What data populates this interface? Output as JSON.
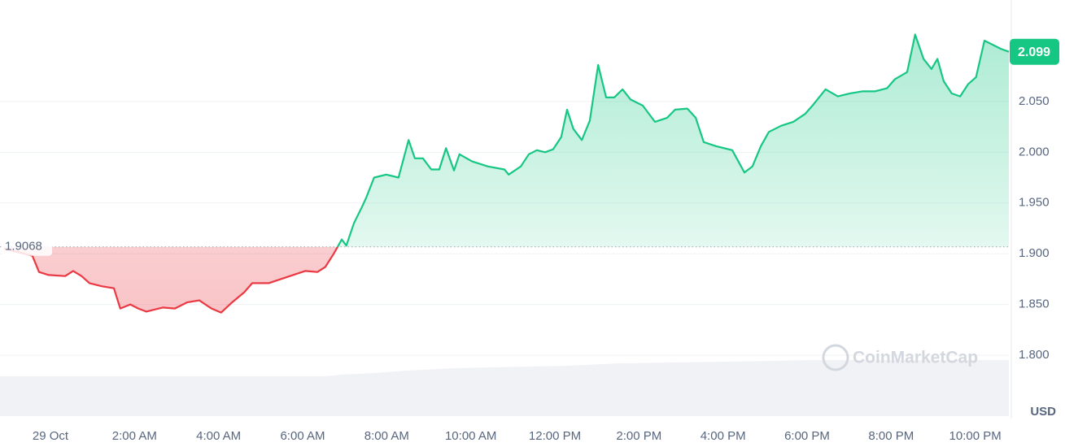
{
  "chart_data": {
    "type": "line",
    "x": [
      -1.1,
      -0.43,
      -0.27,
      -0.04,
      0.35,
      0.54,
      0.74,
      0.93,
      1.22,
      1.51,
      1.66,
      1.9,
      2.09,
      2.28,
      2.67,
      2.96,
      3.25,
      3.54,
      3.83,
      4.06,
      4.32,
      4.61,
      4.8,
      5.19,
      5.48,
      5.77,
      6.06,
      6.35,
      6.54,
      6.74,
      6.93,
      7.04,
      7.22,
      7.41,
      7.51,
      7.7,
      7.99,
      8.28,
      8.52,
      8.67,
      8.86,
      9.06,
      9.25,
      9.41,
      9.6,
      9.73,
      10.03,
      10.41,
      10.8,
      10.9,
      11.19,
      11.38,
      11.57,
      11.77,
      11.96,
      12.15,
      12.29,
      12.44,
      12.64,
      12.83,
      13.03,
      13.22,
      13.41,
      13.61,
      13.8,
      14.09,
      14.38,
      14.67,
      14.86,
      15.15,
      15.35,
      15.54,
      15.83,
      16.22,
      16.51,
      16.7,
      16.9,
      17.09,
      17.38,
      17.67,
      17.96,
      18.15,
      18.44,
      18.73,
      19.02,
      19.31,
      19.61,
      19.9,
      20.09,
      20.38,
      20.57,
      20.77,
      20.96,
      21.1,
      21.25,
      21.44,
      21.64,
      21.83,
      22.02,
      22.22,
      22.41,
      22.6,
      22.8
    ],
    "series": [
      {
        "name": "Price",
        "color": "#16c784",
        "below_color": "#ea3943",
        "values": [
          1.905,
          1.898,
          1.882,
          1.879,
          1.878,
          1.883,
          1.878,
          1.871,
          1.868,
          1.866,
          1.846,
          1.85,
          1.846,
          1.843,
          1.847,
          1.846,
          1.852,
          1.854,
          1.846,
          1.842,
          1.852,
          1.862,
          1.871,
          1.871,
          1.875,
          1.879,
          1.883,
          1.882,
          1.887,
          1.9,
          1.914,
          1.908,
          1.93,
          1.946,
          1.955,
          1.975,
          1.978,
          1.975,
          2.012,
          1.994,
          1.994,
          1.983,
          1.983,
          2.004,
          1.982,
          1.998,
          1.991,
          1.986,
          1.983,
          1.978,
          1.986,
          1.998,
          2.002,
          2.0,
          2.003,
          2.015,
          2.042,
          2.023,
          2.012,
          2.031,
          2.086,
          2.054,
          2.054,
          2.062,
          2.052,
          2.046,
          2.03,
          2.034,
          2.042,
          2.043,
          2.034,
          2.01,
          2.006,
          2.002,
          1.98,
          1.986,
          2.006,
          2.02,
          2.026,
          2.03,
          2.038,
          2.047,
          2.062,
          2.055,
          2.058,
          2.06,
          2.06,
          2.063,
          2.072,
          2.079,
          2.116,
          2.092,
          2.082,
          2.092,
          2.07,
          2.058,
          2.055,
          2.067,
          2.074,
          2.11,
          2.106,
          2.102,
          2.099
        ]
      }
    ],
    "baseline": 1.9068,
    "current_price": 2.099,
    "xlim": [
      -1.2,
      22.8
    ],
    "xticks": [
      {
        "value": 0,
        "label": "29 Oct"
      },
      {
        "value": 2,
        "label": "2:00 AM"
      },
      {
        "value": 4,
        "label": "4:00 AM"
      },
      {
        "value": 6,
        "label": "6:00 AM"
      },
      {
        "value": 8,
        "label": "8:00 AM"
      },
      {
        "value": 10,
        "label": "10:00 AM"
      },
      {
        "value": 12,
        "label": "12:00 PM"
      },
      {
        "value": 14,
        "label": "2:00 PM"
      },
      {
        "value": 16,
        "label": "4:00 PM"
      },
      {
        "value": 18,
        "label": "6:00 PM"
      },
      {
        "value": 20,
        "label": "8:00 PM"
      },
      {
        "value": 22,
        "label": "10:00 PM"
      }
    ],
    "ylim": [
      1.74,
      2.15
    ],
    "yticks": [
      {
        "value": 1.8,
        "label": "1.800"
      },
      {
        "value": 1.85,
        "label": "1.850"
      },
      {
        "value": 1.9,
        "label": "1.900"
      },
      {
        "value": 1.95,
        "label": "1.950"
      },
      {
        "value": 2.0,
        "label": "2.000"
      },
      {
        "value": 2.05,
        "label": "2.050"
      }
    ],
    "y_unit": "USD",
    "watermark": "CoinMarketCap",
    "grid": true
  }
}
